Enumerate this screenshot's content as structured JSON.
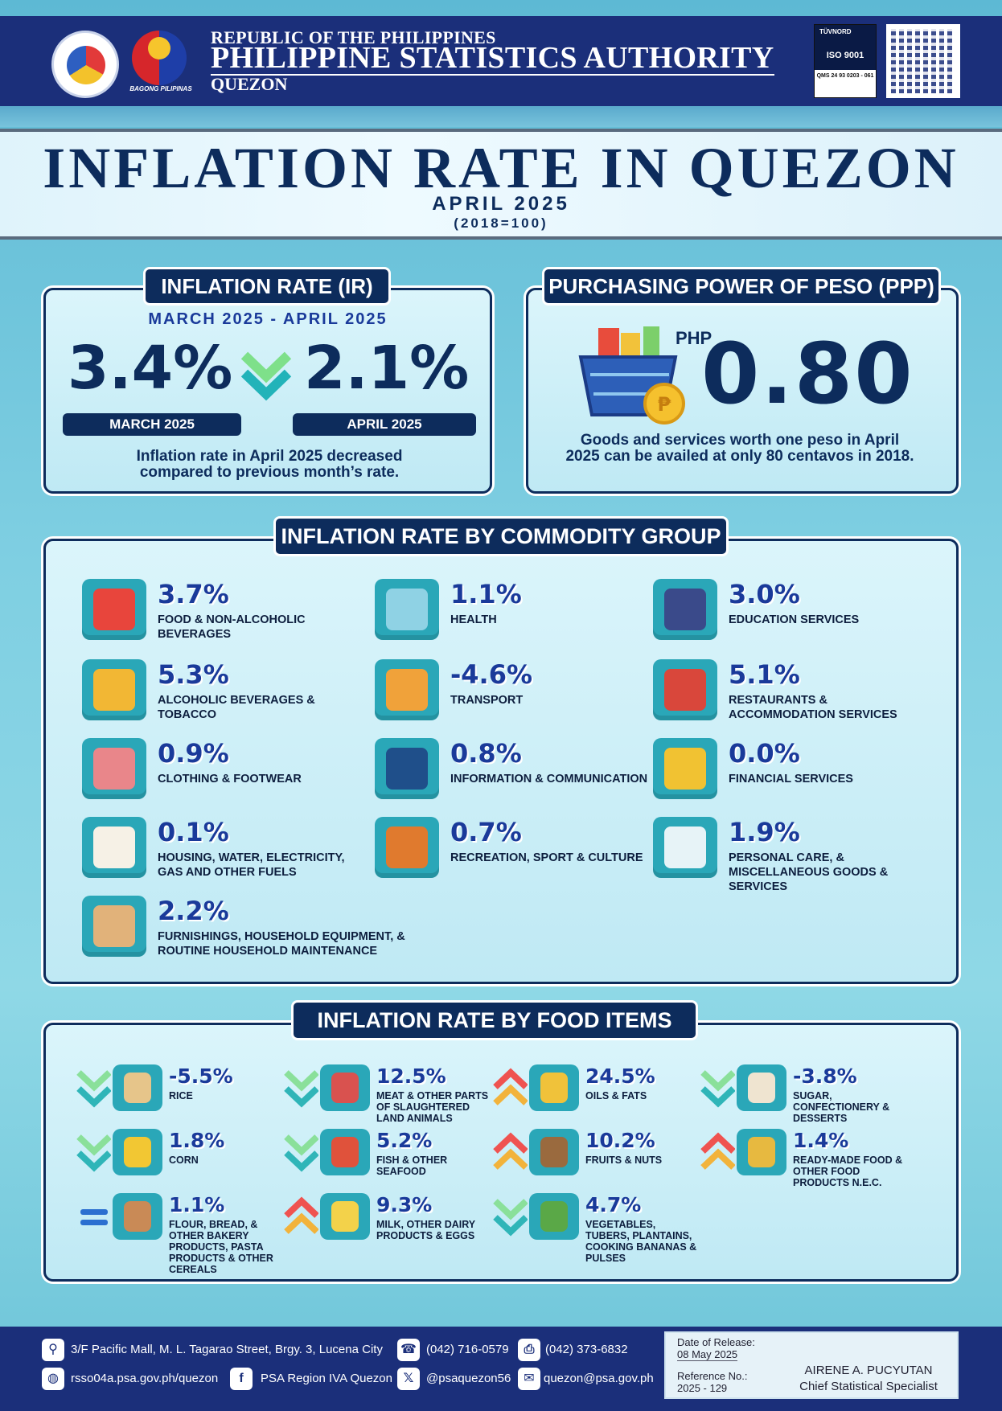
{
  "header": {
    "line1": "REPUBLIC OF THE PHILIPPINES",
    "line2": "PHILIPPINE STATISTICS AUTHORITY",
    "line3": "QUEZON",
    "bagong": "BAGONG PILIPINAS",
    "iso_top": "TÜVNORD",
    "iso_main": "ISO 9001",
    "iso_cert": "QMS 24 93 0203 - 061"
  },
  "title": {
    "main": "INFLATION RATE IN QUEZON",
    "period": "APRIL 2025",
    "base": "(2018=100)"
  },
  "ir": {
    "tab": "INFLATION RATE (IR)",
    "range": "MARCH 2025 -  APRIL 2025",
    "march_value": "3.4%",
    "april_value": "2.1%",
    "march_label": "MARCH 2025",
    "april_label": "APRIL 2025",
    "note": "Inflation rate in April 2025 decreased compared to previous month’s rate."
  },
  "ppp": {
    "tab": "PURCHASING POWER OF PESO (PPP)",
    "currency": "PHP",
    "value": "0.80",
    "note": "Goods and services worth one peso in April 2025 can be availed at only 80 centavos in 2018."
  },
  "commodity": {
    "tab": "INFLATION RATE  BY COMMODITY GROUP",
    "items": [
      {
        "value": "3.7%",
        "label": "FOOD & NON-ALCOHOLIC BEVERAGES",
        "icon": "basket-icon",
        "color": "#e8453c"
      },
      {
        "value": "1.1%",
        "label": "HEALTH",
        "icon": "pharmacy-icon",
        "color": "#8fd2e4"
      },
      {
        "value": "3.0%",
        "label": "EDUCATION SERVICES",
        "icon": "books-icon",
        "color": "#3a4a8a"
      },
      {
        "value": "5.3%",
        "label": "ALCOHOLIC BEVERAGES & TOBACCO",
        "icon": "beer-icon",
        "color": "#f2b734"
      },
      {
        "value": "-4.6%",
        "label": "TRANSPORT",
        "icon": "jeepney-icon",
        "color": "#f0a23a"
      },
      {
        "value": "5.1%",
        "label": "RESTAURANTS & ACCOMMODATION SERVICES",
        "icon": "restaurant-icon",
        "color": "#d9473b"
      },
      {
        "value": "0.9%",
        "label": "CLOTHING & FOOTWEAR",
        "icon": "clothing-icon",
        "color": "#e9868a"
      },
      {
        "value": "0.8%",
        "label": "INFORMATION & COMMUNICATION",
        "icon": "antenna-icon",
        "color": "#1f4f8a"
      },
      {
        "value": "0.0%",
        "label": "FINANCIAL SERVICES",
        "icon": "coins-icon",
        "color": "#f1c232"
      },
      {
        "value": "0.1%",
        "label": "HOUSING, WATER, ELECTRICITY, GAS AND OTHER FUELS",
        "icon": "house-icon",
        "color": "#f6f1e6"
      },
      {
        "value": "0.7%",
        "label": "RECREATION, SPORT & CULTURE",
        "icon": "balls-icon",
        "color": "#e07a2e"
      },
      {
        "value": "1.9%",
        "label": "PERSONAL CARE, & MISCELLANEOUS GOODS & SERVICES",
        "icon": "toiletries-icon",
        "color": "#e7f3f7"
      },
      {
        "value": "2.2%",
        "label": "FURNISHINGS, HOUSEHOLD EQUIPMENT, & ROUTINE HOUSEHOLD MAINTENANCE",
        "icon": "cabinet-icon",
        "color": "#e1b27a"
      }
    ]
  },
  "food": {
    "tab": "INFLATION RATE BY FOOD ITEMS",
    "items": [
      {
        "value": "-5.5%",
        "label": "RICE",
        "trend": "down",
        "icon": "rice-sack-icon",
        "color": "#e6c58a"
      },
      {
        "value": "12.5%",
        "label": "MEAT & OTHER PARTS OF SLAUGHTERED LAND ANIMALS",
        "trend": "down",
        "icon": "meat-icon",
        "color": "#d9524f"
      },
      {
        "value": "24.5%",
        "label": "OILS & FATS",
        "trend": "up",
        "icon": "oil-bottle-icon",
        "color": "#f0c23a"
      },
      {
        "value": "-3.8%",
        "label": "SUGAR, CONFECTIONERY & DESSERTS",
        "trend": "down",
        "icon": "sugar-icon",
        "color": "#efe4d0"
      },
      {
        "value": "1.8%",
        "label": "CORN",
        "trend": "down",
        "icon": "corn-icon",
        "color": "#f2c733"
      },
      {
        "value": "5.2%",
        "label": "FISH & OTHER SEAFOOD",
        "trend": "down",
        "icon": "crab-icon",
        "color": "#e0523b"
      },
      {
        "value": "10.2%",
        "label": "FRUITS & NUTS",
        "trend": "up",
        "icon": "fruit-basket-icon",
        "color": "#9a6a3e"
      },
      {
        "value": "1.4%",
        "label": "READY-MADE FOOD & OTHER FOOD PRODUCTS N.E.C.",
        "trend": "up",
        "icon": "canned-food-icon",
        "color": "#e7b940"
      },
      {
        "value": "1.1%",
        "label": "FLOUR, BREAD, & OTHER BAKERY PRODUCTS, PASTA PRODUCTS & OTHER CEREALS",
        "trend": "equal",
        "icon": "flour-sack-icon",
        "color": "#c98a56"
      },
      {
        "value": "9.3%",
        "label": "MILK, OTHER DAIRY PRODUCTS & EGGS",
        "trend": "up",
        "icon": "milk-cheese-icon",
        "color": "#f3d24a"
      },
      {
        "value": "4.7%",
        "label": "VEGETABLES, TUBERS, PLANTAINS, COOKING BANANAS & PULSES",
        "trend": "down",
        "icon": "vegetables-icon",
        "color": "#5aa847"
      }
    ]
  },
  "footer": {
    "address": "3/F Pacific Mall, M. L. Tagarao Street, Brgy. 3, Lucena City",
    "phone": "(042) 716-0579",
    "fax": "(042) 373-6832",
    "website": "rsso04a.psa.gov.ph/quezon",
    "facebook": "PSA Region IVA Quezon",
    "x_handle": "@psaquezon56",
    "email": "quezon@psa.gov.ph",
    "release_label": "Date of Release:",
    "release_date": "08 May 2025",
    "ref_label": "Reference No.:",
    "ref_no": "2025 - 129",
    "signatory": "AIRENE A. PUCYUTAN",
    "position": "Chief Statistical Specialist"
  },
  "colors": {
    "navy": "#0d2c5c",
    "header": "#1b2f7a",
    "accent": "#1a3a9a",
    "down": "#7ee08a",
    "up": "#f2a93b"
  }
}
